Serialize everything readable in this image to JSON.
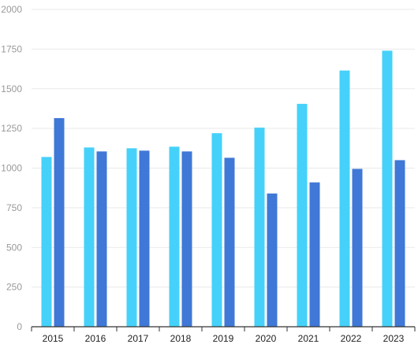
{
  "chart_data": {
    "type": "bar",
    "categories": [
      "2015",
      "2016",
      "2017",
      "2018",
      "2019",
      "2020",
      "2021",
      "2022",
      "2023"
    ],
    "series": [
      {
        "values": [
          1070,
          1130,
          1125,
          1135,
          1220,
          1255,
          1405,
          1615,
          1740
        ]
      },
      {
        "values": [
          1315,
          1105,
          1110,
          1105,
          1065,
          840,
          910,
          995,
          1050
        ]
      }
    ],
    "yticks": [
      "0",
      "250",
      "500",
      "750",
      "1000",
      "1250",
      "1500",
      "1750",
      "2000"
    ],
    "ylim": [
      0,
      2000
    ],
    "grid": true,
    "legend": "none",
    "title": "",
    "xlabel": "",
    "ylabel": ""
  },
  "colors": {
    "series": [
      "#45d1fa",
      "#3f78d6"
    ],
    "grid": "#e9e9e9",
    "axis": "#333333",
    "ytick_text": "#999999",
    "xtick_text": "#222222"
  }
}
